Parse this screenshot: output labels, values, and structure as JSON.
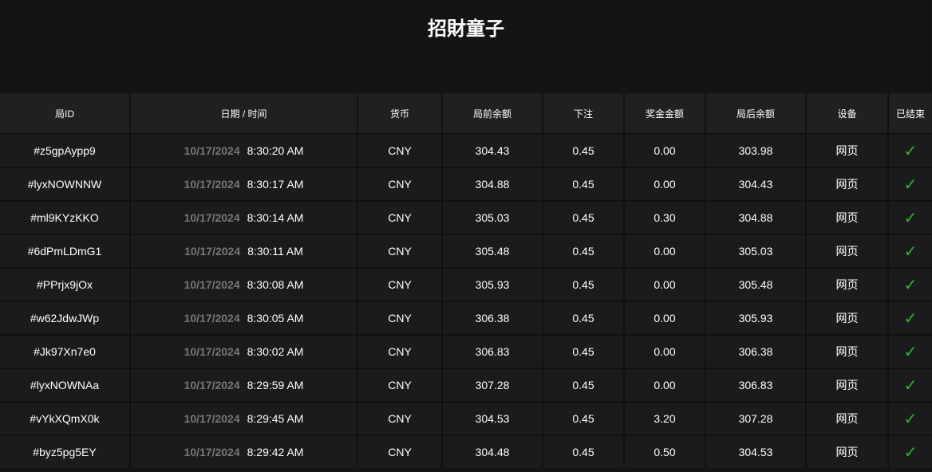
{
  "title": "招財童子",
  "columns": [
    "局ID",
    "日期 / 时间",
    "货币",
    "局前余额",
    "下注",
    "奖金金额",
    "局后余额",
    "设备",
    "已结束"
  ],
  "rows": [
    {
      "id": "#z5gpAypp9",
      "date": "10/17/2024",
      "time": "8:30:20 AM",
      "currency": "CNY",
      "before": "304.43",
      "bet": "0.45",
      "win": "0.00",
      "after": "303.98",
      "device": "网页",
      "done": "✓"
    },
    {
      "id": "#lyxNOWNNW",
      "date": "10/17/2024",
      "time": "8:30:17 AM",
      "currency": "CNY",
      "before": "304.88",
      "bet": "0.45",
      "win": "0.00",
      "after": "304.43",
      "device": "网页",
      "done": "✓"
    },
    {
      "id": "#ml9KYzKKO",
      "date": "10/17/2024",
      "time": "8:30:14 AM",
      "currency": "CNY",
      "before": "305.03",
      "bet": "0.45",
      "win": "0.30",
      "after": "304.88",
      "device": "网页",
      "done": "✓"
    },
    {
      "id": "#6dPmLDmG1",
      "date": "10/17/2024",
      "time": "8:30:11 AM",
      "currency": "CNY",
      "before": "305.48",
      "bet": "0.45",
      "win": "0.00",
      "after": "305.03",
      "device": "网页",
      "done": "✓"
    },
    {
      "id": "#PPrjx9jOx",
      "date": "10/17/2024",
      "time": "8:30:08 AM",
      "currency": "CNY",
      "before": "305.93",
      "bet": "0.45",
      "win": "0.00",
      "after": "305.48",
      "device": "网页",
      "done": "✓"
    },
    {
      "id": "#w62JdwJWp",
      "date": "10/17/2024",
      "time": "8:30:05 AM",
      "currency": "CNY",
      "before": "306.38",
      "bet": "0.45",
      "win": "0.00",
      "after": "305.93",
      "device": "网页",
      "done": "✓"
    },
    {
      "id": "#Jk97Xn7e0",
      "date": "10/17/2024",
      "time": "8:30:02 AM",
      "currency": "CNY",
      "before": "306.83",
      "bet": "0.45",
      "win": "0.00",
      "after": "306.38",
      "device": "网页",
      "done": "✓"
    },
    {
      "id": "#lyxNOWNAa",
      "date": "10/17/2024",
      "time": "8:29:59 AM",
      "currency": "CNY",
      "before": "307.28",
      "bet": "0.45",
      "win": "0.00",
      "after": "306.83",
      "device": "网页",
      "done": "✓"
    },
    {
      "id": "#vYkXQmX0k",
      "date": "10/17/2024",
      "time": "8:29:45 AM",
      "currency": "CNY",
      "before": "304.53",
      "bet": "0.45",
      "win": "3.20",
      "after": "307.28",
      "device": "网页",
      "done": "✓"
    },
    {
      "id": "#byz5pg5EY",
      "date": "10/17/2024",
      "time": "8:29:42 AM",
      "currency": "CNY",
      "before": "304.48",
      "bet": "0.45",
      "win": "0.50",
      "after": "304.53",
      "device": "网页",
      "done": "✓"
    }
  ],
  "colors": {
    "check": "#2db52d",
    "header_bg": "#202023",
    "row_bg": "#1b1b1d"
  }
}
